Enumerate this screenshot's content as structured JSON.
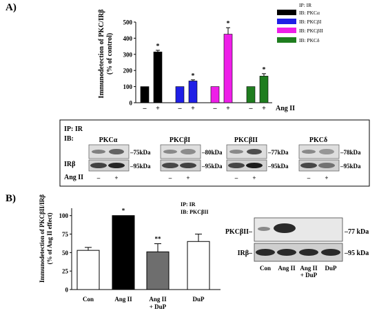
{
  "panel_a": {
    "label": "A)",
    "ylabel_line1": "Immunodetection of PKC/IRβ",
    "ylabel_line2": "(% of control)",
    "treatment_label": "Ang II",
    "signs": [
      "–",
      "+",
      "–",
      "+",
      "–",
      "+",
      "–",
      "+"
    ],
    "legend": [
      {
        "label": "IP: IR",
        "color": null
      },
      {
        "label": "IB: PKCα",
        "color": "#000000"
      },
      {
        "label": "IB: PKCβI",
        "color": "#1f1fe6"
      },
      {
        "label": "IB: PKCβII",
        "color": "#ee1ee8"
      },
      {
        "label": "IB: PKCδ",
        "color": "#1f7d1f"
      }
    ],
    "blot_box": {
      "ip": "IP: IR",
      "ib": "IB:",
      "irb": "IRβ",
      "ang": "Ang II",
      "signs": [
        "–",
        "+"
      ],
      "groups": [
        {
          "title": "PKCα",
          "top_kda": "75kDa",
          "bottom_kda": "95kDa"
        },
        {
          "title": "PKCβI",
          "top_kda": "80kDa",
          "bottom_kda": "95kDa"
        },
        {
          "title": "PKCβII",
          "top_kda": "77kDa",
          "bottom_kda": "95kDa"
        },
        {
          "title": "PKCδ",
          "top_kda": "78kDa",
          "bottom_kda": "95kDa"
        }
      ]
    }
  },
  "panel_b": {
    "label": "B)",
    "ylabel_line1": "Immunodetection of PKCβII/IRβ",
    "ylabel_line2": "(% of Ang II effect)",
    "legend_ip": "IP: IR",
    "legend_ib": "IB: PKCβII",
    "blot_top_label": "PKCβII–",
    "blot_bottom_label": "IRβ–",
    "blot_top_kda": "–77 kDa",
    "blot_bottom_kda": "–95 kDa",
    "lanes": [
      "Con",
      "Ang II",
      "Ang II\n+ DuP",
      "DuP"
    ]
  },
  "chart_data": [
    {
      "type": "bar",
      "categories": [
        "PKCα –",
        "PKCα +",
        "PKCβI –",
        "PKCβI +",
        "PKCβII –",
        "PKCβII +",
        "PKCδ –",
        "PKCδ +"
      ],
      "values": [
        100,
        315,
        100,
        135,
        100,
        425,
        100,
        165
      ],
      "errors": [
        0,
        10,
        0,
        7,
        0,
        40,
        0,
        15
      ],
      "significance": [
        "",
        "*",
        "",
        "*",
        "",
        "*",
        "",
        "*"
      ],
      "colors": [
        "#000000",
        "#000000",
        "#1f1fe6",
        "#1f1fe6",
        "#ee1ee8",
        "#ee1ee8",
        "#1f7d1f",
        "#1f7d1f"
      ],
      "ylim": [
        0,
        500
      ],
      "yticks": [
        0,
        100,
        200,
        300,
        400,
        500
      ]
    },
    {
      "type": "bar",
      "categories": [
        "Con",
        "Ang II",
        "Ang II + DuP",
        "DuP"
      ],
      "values": [
        53,
        100,
        51,
        65
      ],
      "errors": [
        4,
        0,
        11,
        10
      ],
      "significance": [
        "",
        "*",
        "**",
        ""
      ],
      "colors": [
        "#ffffff",
        "#000000",
        "#6e6e6e",
        "#ffffff"
      ],
      "ylim": [
        0,
        110
      ],
      "yticks": [
        0,
        25,
        50,
        75,
        100
      ]
    }
  ]
}
